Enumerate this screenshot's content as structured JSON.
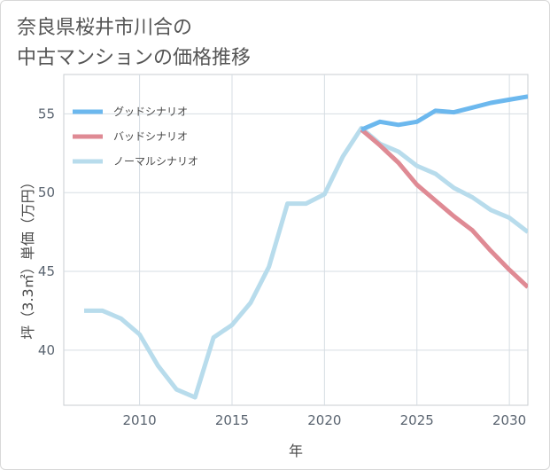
{
  "title_lines": [
    "奈良県桜井市川合の",
    "中古マンションの価格推移"
  ],
  "chart_data": {
    "type": "line",
    "title": "奈良県桜井市川合の中古マンションの価格推移",
    "xlabel": "年",
    "ylabel": "坪（3.3㎡）単価（万円）",
    "xlim": [
      2005.9,
      2031
    ],
    "ylim": [
      36.5,
      57.5
    ],
    "xticks": [
      2010,
      2015,
      2020,
      2025,
      2030
    ],
    "yticks": [
      40,
      45,
      50,
      55
    ],
    "grid": true,
    "legend_position": "top-left",
    "series": [
      {
        "name": "グッドシナリオ",
        "color": "#6cb8ee",
        "x": [
          2022,
          2023,
          2024,
          2025,
          2026,
          2027,
          2028,
          2029,
          2030,
          2031
        ],
        "values": [
          54.0,
          54.5,
          54.3,
          54.5,
          55.2,
          55.1,
          55.4,
          55.7,
          55.9,
          56.1
        ]
      },
      {
        "name": "バッドシナリオ",
        "color": "#df8a94",
        "x": [
          2022,
          2023,
          2024,
          2025,
          2026,
          2027,
          2028,
          2029,
          2030,
          2031
        ],
        "values": [
          54.0,
          53.0,
          51.9,
          50.5,
          49.5,
          48.5,
          47.6,
          46.3,
          45.1,
          44.0
        ]
      },
      {
        "name": "ノーマルシナリオ",
        "color": "#b8dcec",
        "x": [
          2007,
          2008,
          2009,
          2010,
          2011,
          2012,
          2013,
          2014,
          2015,
          2016,
          2017,
          2018,
          2019,
          2020,
          2021,
          2022,
          2023,
          2024,
          2025,
          2026,
          2027,
          2028,
          2029,
          2030,
          2031
        ],
        "values": [
          42.5,
          42.5,
          42.0,
          41.0,
          39.0,
          37.5,
          37.0,
          40.8,
          41.6,
          43.0,
          45.3,
          49.3,
          49.3,
          49.9,
          52.3,
          54.1,
          53.1,
          52.6,
          51.7,
          51.2,
          50.3,
          49.7,
          48.9,
          48.4,
          47.5
        ]
      }
    ]
  }
}
